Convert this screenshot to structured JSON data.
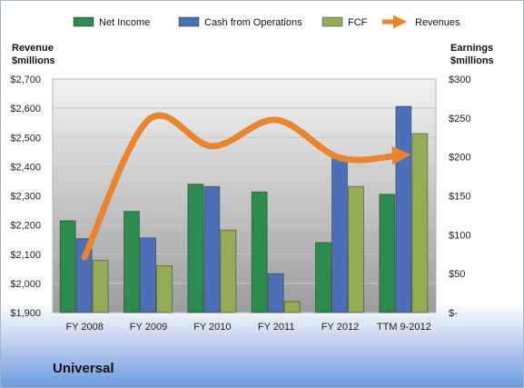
{
  "company_name": "Universal",
  "colors": {
    "net_income": "#2e8b4f",
    "cash_from_operations": "#4d6fb5",
    "fcf": "#93ac55",
    "revenues": "#e8852f"
  },
  "chart_data": {
    "type": "bar",
    "categories": [
      "FY 2008",
      "FY 2009",
      "FY 2010",
      "FY 2011",
      "FY 2012",
      "TTM 9-2012"
    ],
    "series": [
      {
        "name": "Net Income",
        "axis": "right",
        "values": [
          118,
          130,
          165,
          155,
          90,
          152
        ]
      },
      {
        "name": "Cash from Operations",
        "axis": "right",
        "values": [
          95,
          96,
          162,
          50,
          200,
          265
        ]
      },
      {
        "name": "FCF",
        "axis": "right",
        "values": [
          67,
          60,
          106,
          14,
          162,
          230
        ]
      },
      {
        "name": "Revenues",
        "axis": "left",
        "type": "line",
        "values": [
          2090,
          2560,
          2470,
          2560,
          2430,
          2440
        ]
      }
    ],
    "left_axis": {
      "title": [
        "Revenue",
        "$millions"
      ],
      "ylim": [
        1900,
        2700
      ],
      "ticks": [
        "$1,900",
        "$2,000",
        "$2,100",
        "$2,200",
        "$2,300",
        "$2,400",
        "$2,500",
        "$2,600",
        "$2,700"
      ]
    },
    "right_axis": {
      "title": [
        "Earnings",
        "$millions"
      ],
      "ylim": [
        0,
        300
      ],
      "ticks": [
        "$-",
        "$50",
        "$100",
        "$150",
        "$200",
        "$250",
        "$300"
      ]
    },
    "legend_position": "top",
    "grid": true
  }
}
